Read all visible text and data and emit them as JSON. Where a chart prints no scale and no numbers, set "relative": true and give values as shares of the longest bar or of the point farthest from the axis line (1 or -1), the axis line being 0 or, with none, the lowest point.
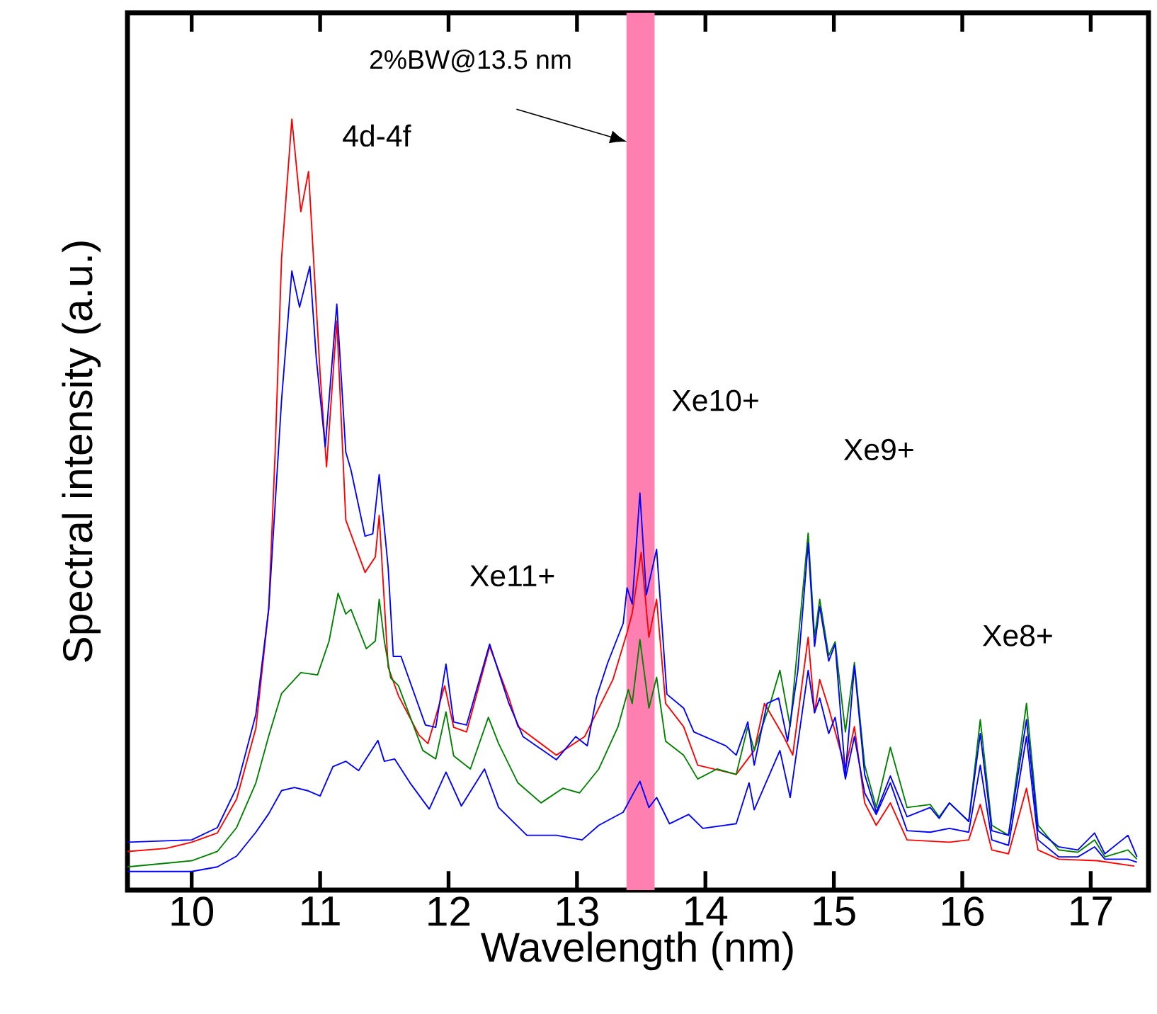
{
  "chart_data": {
    "type": "line",
    "relative": true,
    "xlabel": "Wavelength (nm)",
    "ylabel": "Spectral intensity (a.u.)",
    "xlim": [
      9.5,
      17.45
    ],
    "xticks": [
      10,
      11,
      12,
      13,
      14,
      15,
      16,
      17
    ],
    "bands": [
      {
        "axis": "x",
        "from": 13.39,
        "to": 13.6,
        "label": "2%BW@13.5 nm",
        "color": "#ff80b0"
      }
    ],
    "annotations": [
      "4d-4f",
      "Xe11+",
      "Xe10+",
      "Xe9+",
      "Xe8+"
    ],
    "series": [
      {
        "color": "#ff0000",
        "x": [
          9.5,
          9.8,
          10.0,
          10.2,
          10.35,
          10.5,
          10.6,
          10.65,
          10.7,
          10.78,
          10.85,
          10.91,
          11.0,
          11.05,
          11.13,
          11.2,
          11.35,
          11.43,
          11.46,
          11.53,
          11.61,
          11.77,
          11.84,
          11.97,
          12.04,
          12.14,
          12.32,
          12.47,
          12.54,
          12.84,
          13.06,
          13.17,
          13.28,
          13.39,
          13.43,
          13.5,
          13.56,
          13.62,
          13.69,
          13.83,
          13.94,
          14.24,
          14.38,
          14.46,
          14.61,
          14.68,
          14.8,
          14.85,
          14.89,
          14.96,
          15.09,
          15.16,
          15.24,
          15.33,
          15.44,
          15.57,
          15.9,
          16.05,
          16.14,
          16.23,
          16.36,
          16.5,
          16.59,
          16.75,
          17.05,
          17.34
        ],
        "values": [
          0.05,
          0.054,
          0.062,
          0.074,
          0.118,
          0.21,
          0.365,
          0.568,
          0.82,
          1.0,
          0.88,
          0.932,
          0.67,
          0.549,
          0.738,
          0.48,
          0.412,
          0.432,
          0.486,
          0.289,
          0.252,
          0.201,
          0.19,
          0.265,
          0.211,
          0.205,
          0.316,
          0.249,
          0.212,
          0.175,
          0.199,
          0.236,
          0.273,
          0.334,
          0.359,
          0.438,
          0.328,
          0.377,
          0.242,
          0.212,
          0.162,
          0.15,
          0.181,
          0.242,
          0.199,
          0.175,
          0.328,
          0.23,
          0.273,
          0.236,
          0.157,
          0.212,
          0.113,
          0.084,
          0.113,
          0.065,
          0.062,
          0.065,
          0.111,
          0.052,
          0.047,
          0.132,
          0.052,
          0.04,
          0.038,
          0.031
        ]
      },
      {
        "color": "#008000",
        "x": [
          9.5,
          10.0,
          10.2,
          10.35,
          10.5,
          10.6,
          10.7,
          10.85,
          10.98,
          11.07,
          11.14,
          11.2,
          11.24,
          11.36,
          11.43,
          11.46,
          11.5,
          11.55,
          11.61,
          11.8,
          11.9,
          11.98,
          12.04,
          12.17,
          12.31,
          12.39,
          12.54,
          12.72,
          12.89,
          13.02,
          13.17,
          13.32,
          13.4,
          13.43,
          13.49,
          13.56,
          13.62,
          13.69,
          13.83,
          13.94,
          14.09,
          14.24,
          14.33,
          14.38,
          14.51,
          14.58,
          14.66,
          14.8,
          14.85,
          14.89,
          14.96,
          15.01,
          15.09,
          15.16,
          15.24,
          15.33,
          15.44,
          15.57,
          15.75,
          15.82,
          15.9,
          16.05,
          16.14,
          16.23,
          16.36,
          16.5,
          16.59,
          16.75,
          16.9,
          17.03,
          17.11,
          17.29,
          17.36
        ],
        "values": [
          0.03,
          0.038,
          0.05,
          0.081,
          0.139,
          0.2,
          0.255,
          0.282,
          0.279,
          0.323,
          0.385,
          0.358,
          0.364,
          0.313,
          0.323,
          0.377,
          0.323,
          0.275,
          0.265,
          0.181,
          0.17,
          0.231,
          0.174,
          0.157,
          0.224,
          0.19,
          0.139,
          0.113,
          0.132,
          0.126,
          0.157,
          0.212,
          0.26,
          0.242,
          0.325,
          0.236,
          0.276,
          0.193,
          0.175,
          0.144,
          0.157,
          0.15,
          0.212,
          0.181,
          0.245,
          0.285,
          0.212,
          0.463,
          0.328,
          0.377,
          0.304,
          0.322,
          0.205,
          0.295,
          0.162,
          0.107,
          0.185,
          0.107,
          0.111,
          0.095,
          0.113,
          0.089,
          0.221,
          0.084,
          0.071,
          0.242,
          0.084,
          0.052,
          0.049,
          0.065,
          0.043,
          0.052,
          0.04
        ]
      },
      {
        "color": "#0000ff",
        "x": [
          9.5,
          10.0,
          10.2,
          10.35,
          10.5,
          10.6,
          10.7,
          10.78,
          10.84,
          10.92,
          10.97,
          11.04,
          11.13,
          11.2,
          11.24,
          11.35,
          11.41,
          11.46,
          11.53,
          11.57,
          11.63,
          11.82,
          11.9,
          11.98,
          12.04,
          12.14,
          12.32,
          12.47,
          12.58,
          12.84,
          12.99,
          13.08,
          13.15,
          13.24,
          13.36,
          13.39,
          13.43,
          13.49,
          13.54,
          13.62,
          13.7,
          13.83,
          13.91,
          14.16,
          14.24,
          14.33,
          14.38,
          14.48,
          14.57,
          14.64,
          14.72,
          14.8,
          14.85,
          14.89,
          14.96,
          15.01,
          15.09,
          15.16,
          15.24,
          15.33,
          15.44,
          15.57,
          15.75,
          15.82,
          15.9,
          16.05,
          16.14,
          16.23,
          16.36,
          16.5,
          16.59,
          16.75,
          16.9,
          17.03,
          17.11,
          17.29,
          17.36
        ],
        "values": [
          0.062,
          0.065,
          0.081,
          0.133,
          0.228,
          0.365,
          0.636,
          0.803,
          0.756,
          0.809,
          0.69,
          0.575,
          0.76,
          0.568,
          0.545,
          0.459,
          0.462,
          0.539,
          0.418,
          0.303,
          0.303,
          0.214,
          0.211,
          0.293,
          0.218,
          0.214,
          0.319,
          0.242,
          0.199,
          0.169,
          0.199,
          0.187,
          0.249,
          0.295,
          0.346,
          0.392,
          0.371,
          0.515,
          0.383,
          0.442,
          0.254,
          0.236,
          0.205,
          0.187,
          0.175,
          0.218,
          0.162,
          0.242,
          0.249,
          0.193,
          0.285,
          0.45,
          0.316,
          0.368,
          0.297,
          0.319,
          0.15,
          0.291,
          0.15,
          0.101,
          0.148,
          0.095,
          0.107,
          0.093,
          0.113,
          0.089,
          0.203,
          0.077,
          0.071,
          0.221,
          0.077,
          0.056,
          0.052,
          0.074,
          0.047,
          0.071,
          0.043
        ]
      },
      {
        "color": "#0000ff",
        "x": [
          9.5,
          10.0,
          10.2,
          10.35,
          10.5,
          10.6,
          10.7,
          10.8,
          10.9,
          11.0,
          11.1,
          11.2,
          11.3,
          11.45,
          11.5,
          11.58,
          11.7,
          11.85,
          11.98,
          12.1,
          12.28,
          12.39,
          12.61,
          12.84,
          13.04,
          13.17,
          13.36,
          13.49,
          13.56,
          13.62,
          13.72,
          13.87,
          13.98,
          14.24,
          14.34,
          14.38,
          14.58,
          14.66,
          14.8,
          14.85,
          14.89,
          14.96,
          15.01,
          15.09,
          15.16,
          15.24,
          15.33,
          15.44,
          15.57,
          15.75,
          15.9,
          16.05,
          16.14,
          16.23,
          16.36,
          16.5,
          16.59,
          16.75,
          16.9,
          17.03,
          17.11,
          17.29,
          17.36
        ],
        "values": [
          0.024,
          0.024,
          0.03,
          0.044,
          0.075,
          0.099,
          0.129,
          0.133,
          0.129,
          0.122,
          0.16,
          0.167,
          0.155,
          0.194,
          0.167,
          0.17,
          0.139,
          0.105,
          0.153,
          0.109,
          0.157,
          0.107,
          0.071,
          0.071,
          0.065,
          0.084,
          0.101,
          0.141,
          0.107,
          0.12,
          0.086,
          0.098,
          0.08,
          0.086,
          0.139,
          0.104,
          0.181,
          0.12,
          0.285,
          0.23,
          0.249,
          0.203,
          0.224,
          0.144,
          0.199,
          0.126,
          0.098,
          0.139,
          0.077,
          0.075,
          0.08,
          0.075,
          0.162,
          0.065,
          0.058,
          0.199,
          0.065,
          0.043,
          0.043,
          0.056,
          0.04,
          0.04,
          0.036
        ]
      }
    ]
  }
}
